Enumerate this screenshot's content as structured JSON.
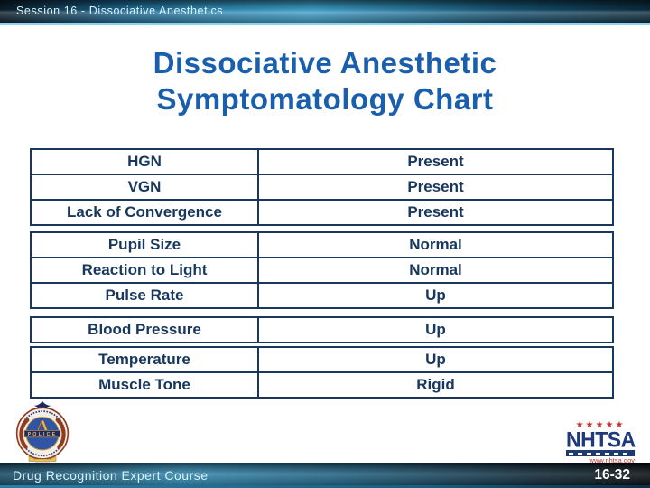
{
  "header": {
    "session_label": "Session 16 - Dissociative Anesthetics"
  },
  "title": {
    "line1": "Dissociative Anesthetic",
    "line2": "Symptomatology Chart"
  },
  "table": {
    "groups": [
      {
        "rows": [
          {
            "label": "HGN",
            "value": "Present"
          },
          {
            "label": "VGN",
            "value": "Present"
          },
          {
            "label": "Lack of Convergence",
            "value": "Present"
          }
        ]
      },
      {
        "rows": [
          {
            "label": "Pupil Size",
            "value": "Normal"
          },
          {
            "label": "Reaction to Light",
            "value": "Normal"
          },
          {
            "label": "Pulse Rate",
            "value": "Up"
          }
        ]
      },
      {
        "rows": [
          {
            "label": "Blood Pressure",
            "value": "Up"
          }
        ]
      },
      {
        "rows": [
          {
            "label": "Temperature",
            "value": "Up"
          },
          {
            "label": "Muscle Tone",
            "value": "Rigid"
          }
        ]
      }
    ]
  },
  "chart_data": {
    "type": "table",
    "title": "Dissociative Anesthetic Symptomatology Chart",
    "categories": [
      "HGN",
      "VGN",
      "Lack of Convergence",
      "Pupil Size",
      "Reaction to Light",
      "Pulse Rate",
      "Blood Pressure",
      "Temperature",
      "Muscle Tone"
    ],
    "values": [
      "Present",
      "Present",
      "Present",
      "Normal",
      "Normal",
      "Up",
      "Up",
      "Up",
      "Rigid"
    ]
  },
  "logos": {
    "iacp": {
      "banner_text": "POLICE"
    },
    "nhtsa": {
      "stars": "★★★★★",
      "name": "NHTSA",
      "url": "www.nhtsa.gov"
    }
  },
  "footer": {
    "course_label": "Drug Recognition Expert Course",
    "page_number": "16-32"
  },
  "colors": {
    "title_blue": "#1a5fae",
    "table_navy": "#17375e",
    "bar_teal": "#2f86ae",
    "star_red": "#c2332b",
    "nhtsa_blue": "#1e3a7a"
  }
}
